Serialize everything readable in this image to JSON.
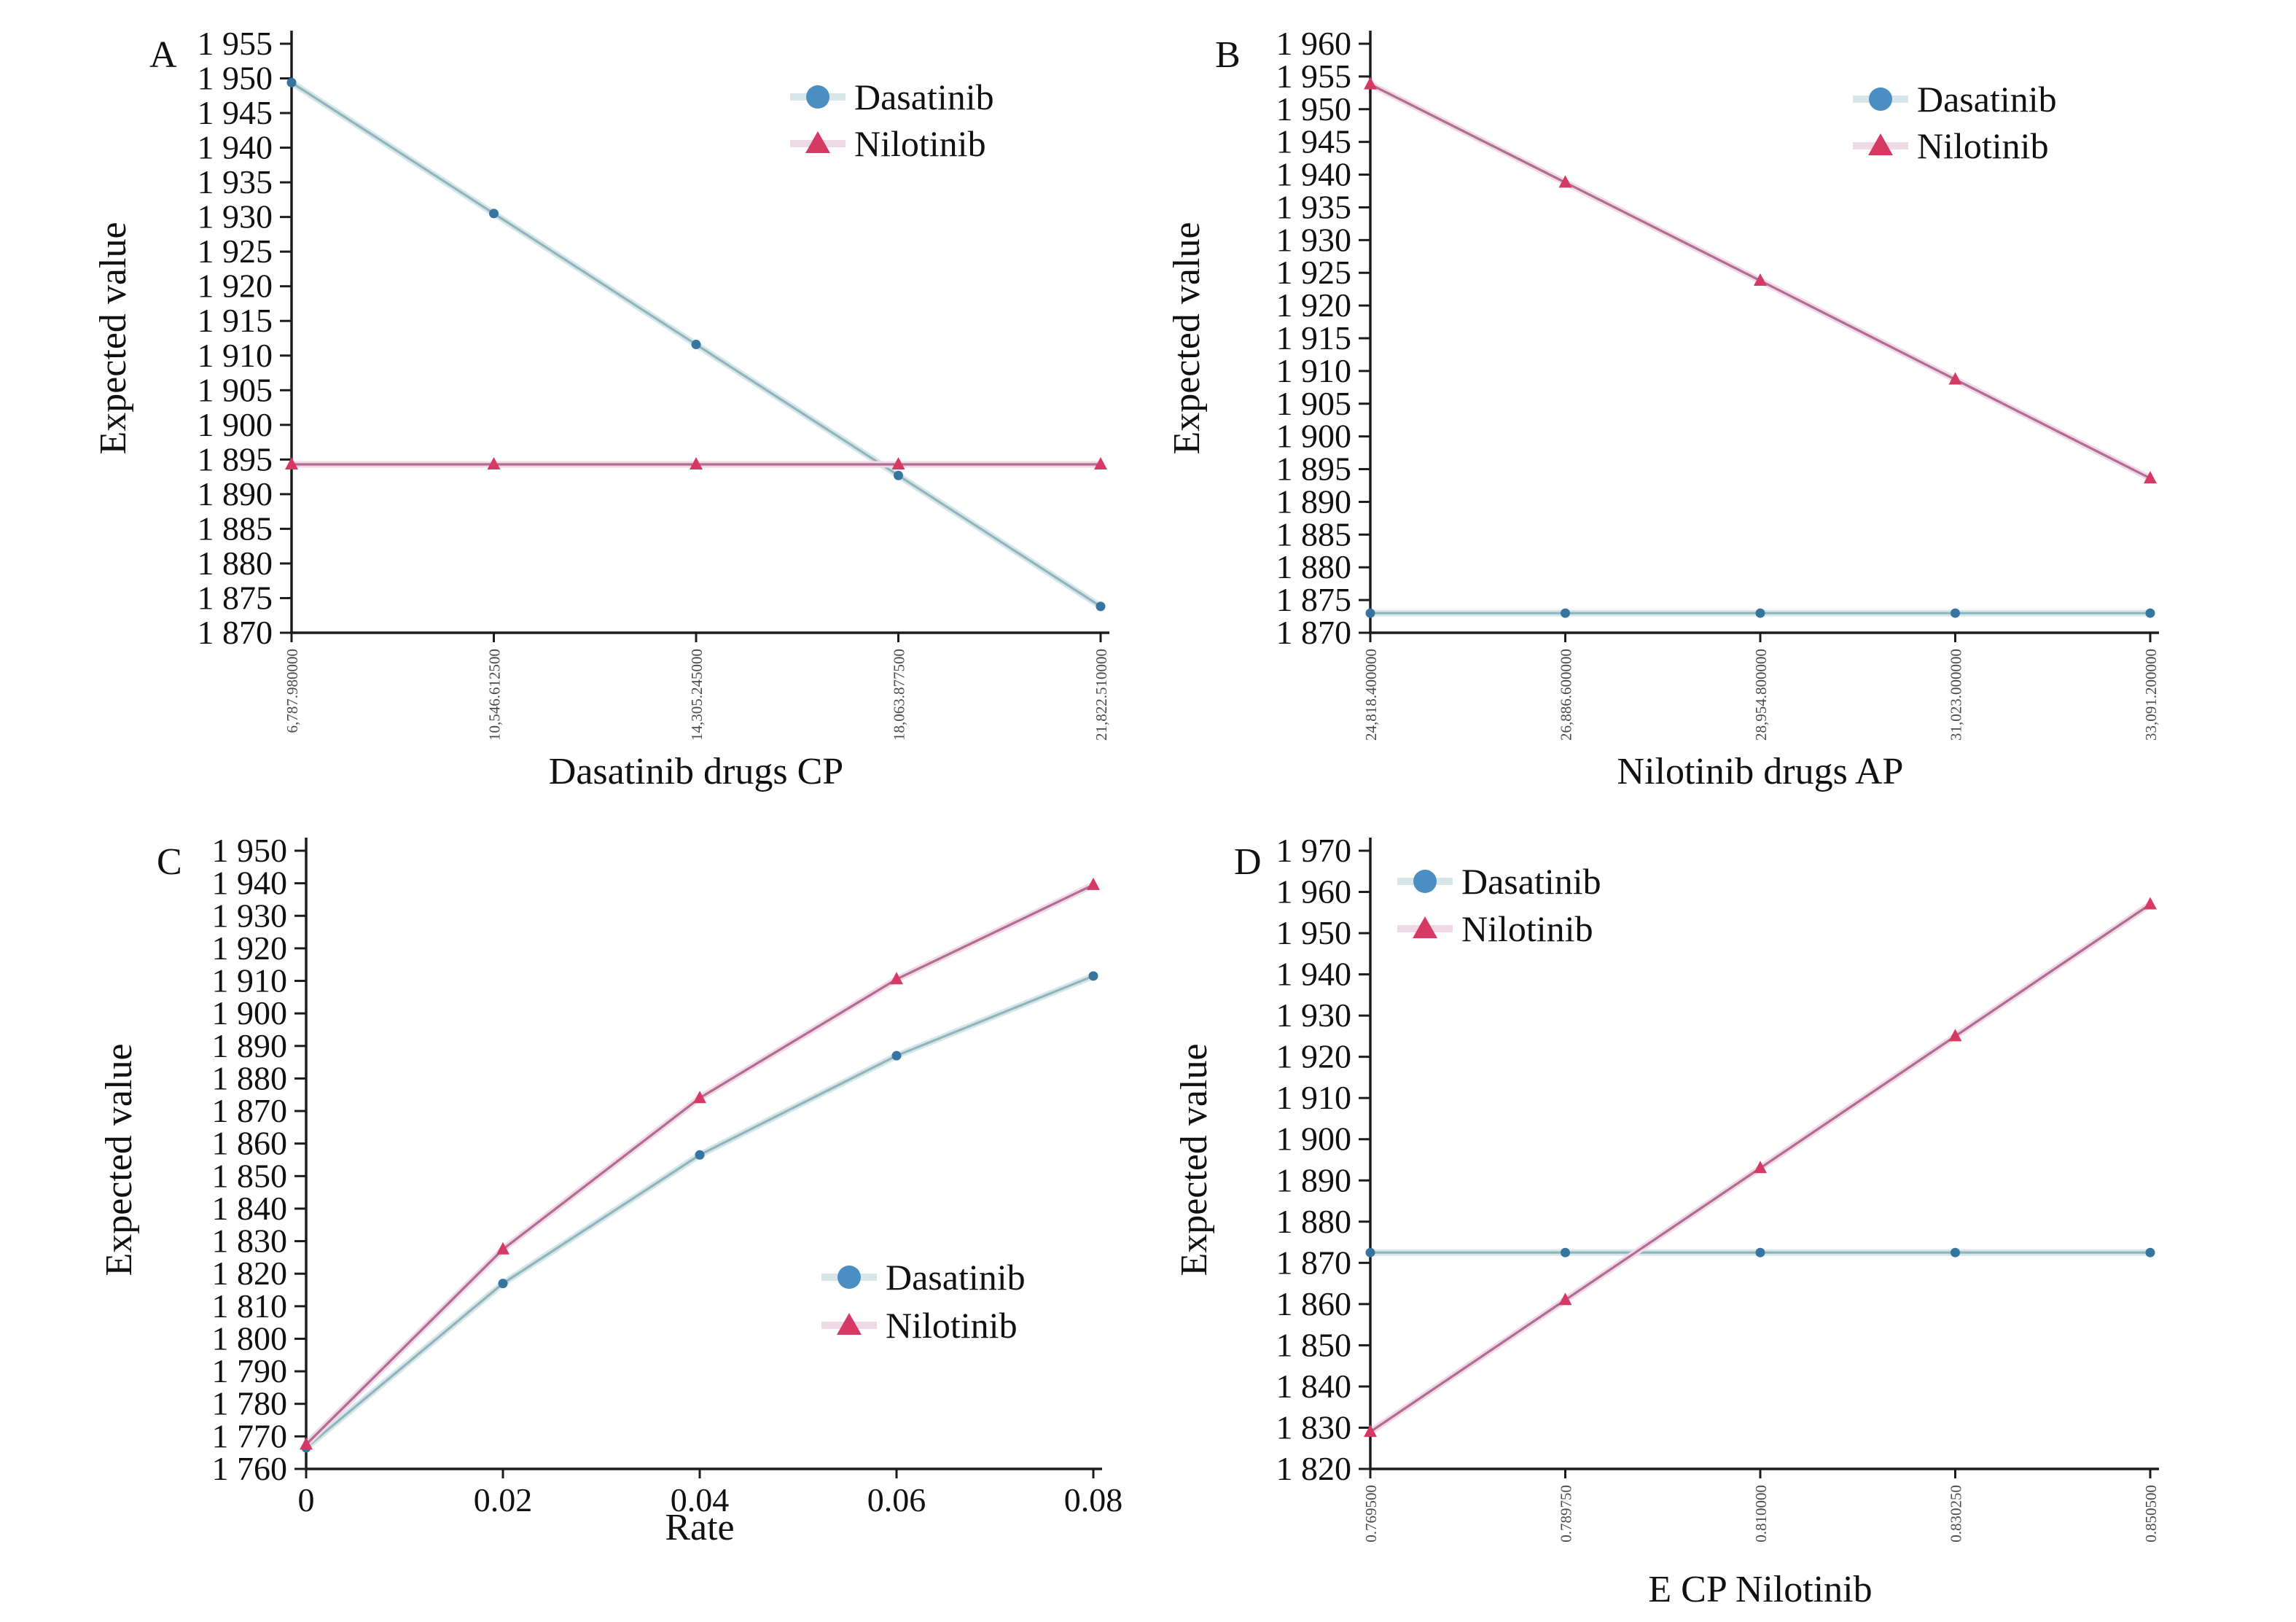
{
  "figure": {
    "background": "#ffffff",
    "ylabel_shared": "Expected value"
  },
  "legend": {
    "items": [
      {
        "label": "Dasatinib",
        "marker": "circle"
      },
      {
        "label": "Nilotinib",
        "marker": "triangle"
      }
    ]
  },
  "colors": {
    "dasatinib_marker": "#36759f",
    "dasatinib_legend_marker": "#4a8ec2",
    "dasatinib_line": "#8fb6bd",
    "dasatinib_halo": "#d7e6e9",
    "nilotinib_marker": "#d63a64",
    "nilotinib_line": "#b26b92",
    "nilotinib_halo": "#eed9e5",
    "axis": "#1c1c1c",
    "tick_small_label": "#4a4a4a",
    "text": "#111111"
  },
  "chart_data": [
    {
      "panel": "A",
      "type": "line",
      "xlabel": "Dasatinib drugs CP",
      "ylabel": "Expected value",
      "x_tick_labels": [
        "6,787.980000",
        "10,546.612500",
        "14,305.245000",
        "18,063.877500",
        "21,822.510000"
      ],
      "x_tick_style": "rotated",
      "ylim": [
        1870,
        1955
      ],
      "ystep": 5,
      "grid": false,
      "legend_position": "top-right",
      "series": [
        {
          "name": "Dasatinib",
          "marker": "circle",
          "values": [
            1949.4,
            1930.5,
            1911.6,
            1892.7,
            1873.8
          ]
        },
        {
          "name": "Nilotinib",
          "marker": "triangle",
          "values": [
            1894.3,
            1894.3,
            1894.3,
            1894.3,
            1894.3
          ]
        }
      ]
    },
    {
      "panel": "B",
      "type": "line",
      "xlabel": "Nilotinib drugs AP",
      "ylabel": "Expected value",
      "x_tick_labels": [
        "24,818.400000",
        "26,886.600000",
        "28,954.800000",
        "31,023.000000",
        "33,091.200000"
      ],
      "x_tick_style": "rotated",
      "ylim": [
        1870,
        1960
      ],
      "ystep": 5,
      "grid": false,
      "legend_position": "top-right",
      "series": [
        {
          "name": "Dasatinib",
          "marker": "circle",
          "values": [
            1873.0,
            1873.0,
            1873.0,
            1873.0,
            1873.0
          ]
        },
        {
          "name": "Nilotinib",
          "marker": "triangle",
          "values": [
            1953.8,
            1938.8,
            1923.8,
            1908.7,
            1893.6
          ]
        }
      ]
    },
    {
      "panel": "C",
      "type": "line",
      "xlabel": "Rate",
      "ylabel": "Expected value",
      "x_tick_labels": [
        "0",
        "0.02",
        "0.04",
        "0.06",
        "0.08"
      ],
      "x_tick_style": "horizontal",
      "ylim": [
        1760,
        1950
      ],
      "ystep": 10,
      "grid": false,
      "legend_position": "right-lower",
      "series": [
        {
          "name": "Dasatinib",
          "marker": "circle",
          "values": [
            1766.5,
            1817.0,
            1856.5,
            1887.0,
            1911.5
          ]
        },
        {
          "name": "Nilotinib",
          "marker": "triangle",
          "values": [
            1767.5,
            1827.5,
            1874.0,
            1910.5,
            1939.5
          ]
        }
      ]
    },
    {
      "panel": "D",
      "type": "line",
      "xlabel": "E CP Nilotinib",
      "ylabel": "Expected value",
      "x_tick_labels": [
        "0.769500",
        "0.789750",
        "0.810000",
        "0.830250",
        "0.850500"
      ],
      "x_tick_style": "rotated",
      "ylim": [
        1820,
        1970
      ],
      "ystep": 10,
      "grid": false,
      "legend_position": "top-left",
      "series": [
        {
          "name": "Dasatinib",
          "marker": "circle",
          "values": [
            1872.5,
            1872.5,
            1872.5,
            1872.5,
            1872.5
          ]
        },
        {
          "name": "Nilotinib",
          "marker": "triangle",
          "values": [
            1829.0,
            1861.0,
            1893.0,
            1925.0,
            1957.0
          ]
        }
      ]
    }
  ]
}
